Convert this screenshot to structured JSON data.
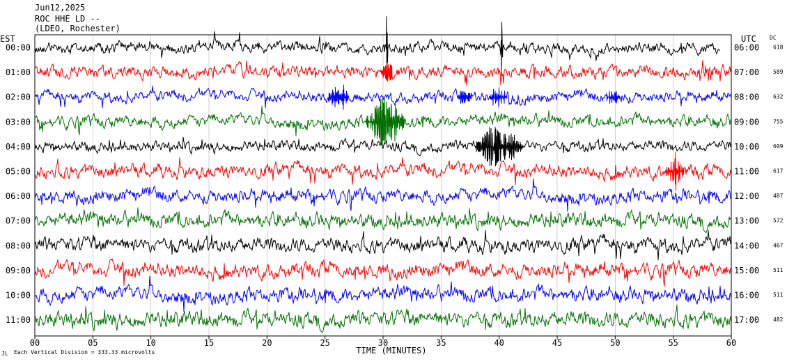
{
  "header": {
    "date": "Jun12,2025",
    "station": "ROC HHE LD --",
    "network": "(LDEO, Rochester)"
  },
  "left_axis_label": "EST",
  "right_axis_label": "UTC",
  "dc_label": "DC",
  "footer": {
    "marker": "JL",
    "note": "Each Vertical Division =  333.33 microvolts"
  },
  "colors": {
    "black": "#000000",
    "red": "#ff0000",
    "blue": "#0000ff",
    "green": "#007000"
  },
  "chart_data": {
    "type": "line",
    "title": "",
    "xlabel": "TIME (MINUTES)",
    "ylabel": "",
    "xlim": [
      0,
      60
    ],
    "x_ticks": [
      "00",
      "05",
      "10",
      "15",
      "20",
      "25",
      "30",
      "35",
      "40",
      "45",
      "50",
      "55",
      "60"
    ],
    "grid": true,
    "series": [
      {
        "left": "00:00",
        "right": "06:00",
        "dc": "618",
        "color": "black",
        "amp": 8,
        "end": 59,
        "events": [
          {
            "t": 30.3,
            "a": 60,
            "w": 0.06
          },
          {
            "t": 40.2,
            "a": 52,
            "w": 0.05
          }
        ]
      },
      {
        "left": "01:00",
        "right": "07:00",
        "dc": "589",
        "color": "red",
        "amp": 9,
        "end": 60,
        "events": [
          {
            "t": 30.3,
            "a": 20,
            "w": 0.3
          }
        ]
      },
      {
        "left": "02:00",
        "right": "08:00",
        "dc": "632",
        "color": "blue",
        "amp": 8,
        "end": 60,
        "events": [
          {
            "t": 26.1,
            "a": 14,
            "w": 0.6
          },
          {
            "t": 37.0,
            "a": 8,
            "w": 0.5
          },
          {
            "t": 39.9,
            "a": 10,
            "w": 0.6
          },
          {
            "t": 49.8,
            "a": 8,
            "w": 0.5
          }
        ]
      },
      {
        "left": "03:00",
        "right": "09:00",
        "dc": "755",
        "color": "green",
        "amp": 9,
        "end": 60,
        "events": [
          {
            "t": 29.8,
            "a": 28,
            "w": 0.8
          },
          {
            "t": 30.6,
            "a": 22,
            "w": 0.8
          }
        ]
      },
      {
        "left": "04:00",
        "right": "10:00",
        "dc": "609",
        "color": "black",
        "amp": 8,
        "end": 60,
        "events": [
          {
            "t": 39.3,
            "a": 24,
            "w": 0.9
          },
          {
            "t": 40.8,
            "a": 22,
            "w": 0.9
          }
        ]
      },
      {
        "left": "05:00",
        "right": "11:00",
        "dc": "617",
        "color": "red",
        "amp": 10,
        "end": 60,
        "events": [
          {
            "t": 55.1,
            "a": 22,
            "w": 0.5
          }
        ]
      },
      {
        "left": "06:00",
        "right": "12:00",
        "dc": "487",
        "color": "blue",
        "amp": 10,
        "end": 60,
        "events": []
      },
      {
        "left": "07:00",
        "right": "13:00",
        "dc": "572",
        "color": "green",
        "amp": 11,
        "end": 60,
        "events": []
      },
      {
        "left": "08:00",
        "right": "14:00",
        "dc": "467",
        "color": "black",
        "amp": 11,
        "end": 60,
        "events": []
      },
      {
        "left": "09:00",
        "right": "15:00",
        "dc": "511",
        "color": "red",
        "amp": 11,
        "end": 60,
        "events": []
      },
      {
        "left": "10:00",
        "right": "16:00",
        "dc": "511",
        "color": "blue",
        "amp": 11,
        "end": 60,
        "events": []
      },
      {
        "left": "11:00",
        "right": "17:00",
        "dc": "482",
        "color": "green",
        "amp": 12,
        "end": 60,
        "events": []
      }
    ]
  }
}
